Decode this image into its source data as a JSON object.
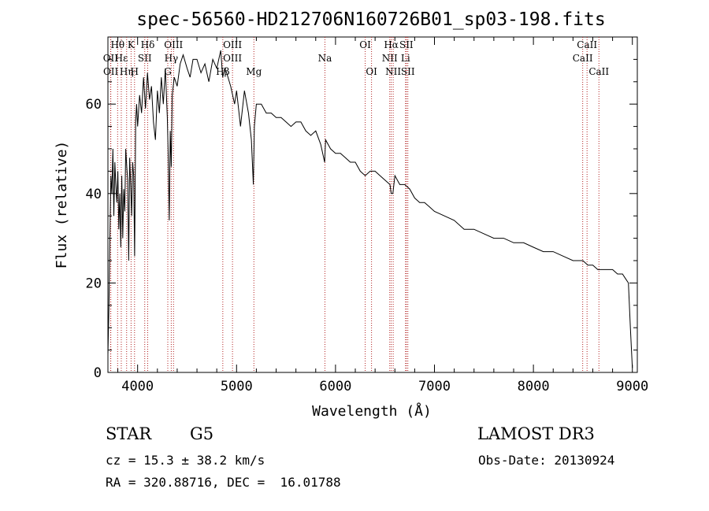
{
  "colors": {
    "axis": "#000000",
    "spectrum": "#000000",
    "line_marker": "#b22222",
    "background": "#ffffff"
  },
  "chart_data": {
    "type": "line",
    "title": "spec-56560-HD212706N160726B01_sp03-198.fits",
    "xlabel": "Wavelength (Å)",
    "ylabel": "Flux (relative)",
    "xlim": [
      3700,
      9050
    ],
    "ylim": [
      0,
      75
    ],
    "xticks": [
      4000,
      5000,
      6000,
      7000,
      8000,
      9000
    ],
    "yticks": [
      0,
      20,
      40,
      60
    ],
    "series": [
      {
        "name": "spectrum",
        "x": [
          3700,
          3710,
          3720,
          3730,
          3740,
          3750,
          3760,
          3770,
          3780,
          3790,
          3800,
          3810,
          3820,
          3830,
          3840,
          3850,
          3860,
          3870,
          3880,
          3890,
          3900,
          3910,
          3920,
          3930,
          3940,
          3950,
          3960,
          3970,
          3980,
          3990,
          4000,
          4020,
          4040,
          4060,
          4080,
          4100,
          4120,
          4140,
          4160,
          4180,
          4200,
          4220,
          4240,
          4260,
          4280,
          4300,
          4310,
          4320,
          4330,
          4340,
          4350,
          4370,
          4400,
          4430,
          4460,
          4500,
          4530,
          4560,
          4600,
          4640,
          4680,
          4720,
          4760,
          4800,
          4840,
          4860,
          4880,
          4900,
          4940,
          4980,
          5000,
          5040,
          5080,
          5120,
          5150,
          5170,
          5180,
          5200,
          5250,
          5300,
          5350,
          5400,
          5450,
          5500,
          5550,
          5600,
          5650,
          5700,
          5750,
          5800,
          5850,
          5890,
          5900,
          5950,
          6000,
          6050,
          6100,
          6150,
          6200,
          6250,
          6300,
          6350,
          6400,
          6450,
          6500,
          6550,
          6563,
          6580,
          6600,
          6650,
          6700,
          6750,
          6800,
          6850,
          6900,
          6950,
          7000,
          7100,
          7200,
          7300,
          7400,
          7500,
          7600,
          7700,
          7800,
          7900,
          8000,
          8100,
          8200,
          8300,
          8400,
          8500,
          8550,
          8600,
          8650,
          8700,
          8750,
          8800,
          8850,
          8900,
          8930,
          8960,
          8980,
          9000
        ],
        "values": [
          4,
          15,
          30,
          44,
          40,
          50,
          35,
          47,
          42,
          38,
          45,
          32,
          40,
          28,
          44,
          30,
          41,
          36,
          50,
          46,
          43,
          25,
          48,
          42,
          35,
          47,
          44,
          26,
          56,
          60,
          55,
          62,
          58,
          66,
          59,
          67,
          61,
          64,
          56,
          52,
          63,
          58,
          66,
          60,
          68,
          57,
          48,
          34,
          54,
          46,
          62,
          66,
          64,
          69,
          71,
          68,
          66,
          70,
          70,
          67,
          69,
          65,
          70,
          68,
          72,
          66,
          68,
          67,
          64,
          60,
          63,
          55,
          63,
          58,
          52,
          42,
          55,
          60,
          60,
          58,
          58,
          57,
          57,
          56,
          55,
          56,
          56,
          54,
          53,
          54,
          51,
          47,
          52,
          50,
          49,
          49,
          48,
          47,
          47,
          45,
          44,
          45,
          45,
          44,
          43,
          42,
          40,
          40,
          44,
          42,
          42,
          41,
          39,
          38,
          38,
          37,
          36,
          35,
          34,
          32,
          32,
          31,
          30,
          30,
          29,
          29,
          28,
          27,
          27,
          26,
          25,
          25,
          24,
          24,
          23,
          23,
          23,
          23,
          22,
          22,
          21,
          20,
          10,
          1
        ]
      }
    ],
    "line_markers": [
      {
        "label": "Hθ",
        "wavelength": 3798,
        "row": 1
      },
      {
        "label": "OII",
        "wavelength": 3727,
        "row": 2
      },
      {
        "label": "OII",
        "wavelength": 3729,
        "row": 3
      },
      {
        "label": "Hε",
        "wavelength": 3835,
        "row": 2
      },
      {
        "label": "Hη",
        "wavelength": 3889,
        "row": 3
      },
      {
        "label": "K",
        "wavelength": 3934,
        "row": 1
      },
      {
        "label": "H",
        "wavelength": 3969,
        "row": 3
      },
      {
        "label": "SII",
        "wavelength": 4072,
        "row": 2
      },
      {
        "label": "Hδ",
        "wavelength": 4102,
        "row": 1
      },
      {
        "label": "OIII",
        "wavelength": 4363,
        "row": 1
      },
      {
        "label": "Hγ",
        "wavelength": 4340,
        "row": 2
      },
      {
        "label": "G",
        "wavelength": 4305,
        "row": 3
      },
      {
        "label": "OIII",
        "wavelength": 4959,
        "row": 1
      },
      {
        "label": "OIII",
        "wavelength": 4959,
        "row": 2
      },
      {
        "label": "Hβ",
        "wavelength": 4861,
        "row": 3
      },
      {
        "label": "Mg",
        "wavelength": 5175,
        "row": 3
      },
      {
        "label": "Na",
        "wavelength": 5893,
        "row": 2
      },
      {
        "label": "OI",
        "wavelength": 6300,
        "row": 1
      },
      {
        "label": "OI",
        "wavelength": 6364,
        "row": 3
      },
      {
        "label": "Hα",
        "wavelength": 6563,
        "row": 1
      },
      {
        "label": "SII",
        "wavelength": 6716,
        "row": 1
      },
      {
        "label": "NII",
        "wavelength": 6548,
        "row": 2
      },
      {
        "label": "Li",
        "wavelength": 6708,
        "row": 2
      },
      {
        "label": "NII",
        "wavelength": 6583,
        "row": 3
      },
      {
        "label": "SII",
        "wavelength": 6731,
        "row": 3
      },
      {
        "label": "CaII",
        "wavelength": 8542,
        "row": 1
      },
      {
        "label": "CaII",
        "wavelength": 8498,
        "row": 2
      },
      {
        "label": "CaII",
        "wavelength": 8662,
        "row": 3
      }
    ]
  },
  "info": {
    "object_class": "STAR",
    "subclass": "G5",
    "survey": "LAMOST DR3",
    "cz": "cz = 15.3 ± 38.2 km/s",
    "obs_date": "Obs-Date: 20130924",
    "coords": "RA = 320.88716, DEC =  16.01788"
  }
}
